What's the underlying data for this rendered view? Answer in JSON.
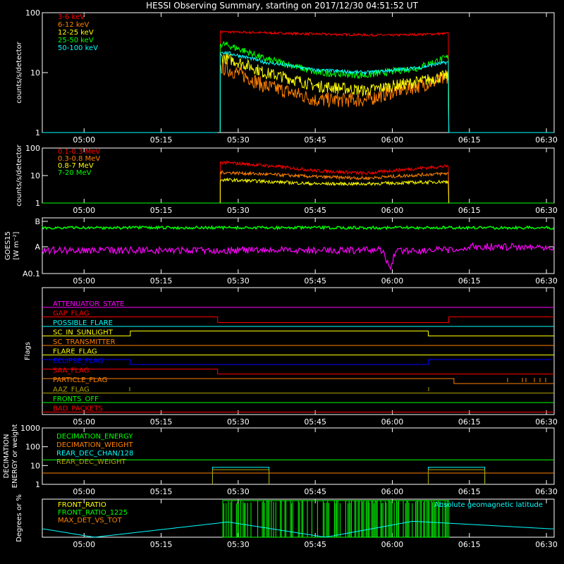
{
  "title": "HESSI Observing Summary, starting on 2017/12/30 04:51:52 UT",
  "time_ticks": [
    "05:00",
    "05:15",
    "05:30",
    "05:45",
    "06:00",
    "06:15",
    "06:30"
  ],
  "colors": {
    "fg": "#ffffff",
    "red": "#ff0000",
    "orange": "#ff8000",
    "yellow": "#ffff00",
    "green": "#00ff00",
    "cyan": "#00ffff",
    "magenta": "#ff00ff",
    "blue": "#0000ff",
    "olive": "#b0a000"
  },
  "chart_data": [
    {
      "type": "line",
      "panel": "counts",
      "ylabel": "counts/s/detector",
      "yscale": "log",
      "ylim": [
        1,
        100
      ],
      "ytick_labels": [
        "1",
        "10",
        "100"
      ],
      "time_range": [
        "04:51:52",
        "06:31:30"
      ],
      "observation_window": [
        "05:26",
        "06:11"
      ],
      "series": [
        {
          "name": "3-6 keV",
          "color": "#ff0000",
          "x": [
            "05:27",
            "05:45",
            "06:00",
            "06:11"
          ],
          "y": [
            48,
            44,
            42,
            45
          ]
        },
        {
          "name": "6-12 keV",
          "color": "#ff8000",
          "x": [
            "05:27",
            "05:35",
            "05:45",
            "05:55",
            "06:05",
            "06:11"
          ],
          "y": [
            12,
            6,
            3.5,
            3.5,
            6,
            8
          ]
        },
        {
          "name": "12-25 keV",
          "color": "#ffff00",
          "x": [
            "05:27",
            "05:35",
            "05:45",
            "05:55",
            "06:05",
            "06:11"
          ],
          "y": [
            18,
            10,
            6,
            5,
            7,
            9
          ]
        },
        {
          "name": "25-50 keV",
          "color": "#00ff00",
          "x": [
            "05:27",
            "05:35",
            "05:45",
            "05:55",
            "06:05",
            "06:11"
          ],
          "y": [
            30,
            17,
            10,
            9,
            12,
            18
          ]
        },
        {
          "name": "50-100 keV",
          "color": "#00ffff",
          "x": [
            "05:27",
            "05:35",
            "05:45",
            "05:55",
            "06:05",
            "06:11"
          ],
          "y": [
            22,
            15,
            11,
            10,
            12,
            15
          ]
        }
      ]
    },
    {
      "type": "line",
      "panel": "counts_high",
      "ylabel": "counts/s/detector",
      "yscale": "log",
      "ylim": [
        1,
        100
      ],
      "ytick_labels": [
        "1",
        "10",
        "100"
      ],
      "series": [
        {
          "name": "0.1-0.3 MeV",
          "color": "#ff0000",
          "x": [
            "05:27",
            "05:45",
            "05:55",
            "06:11"
          ],
          "y": [
            30,
            15,
            12,
            22
          ]
        },
        {
          "name": "0.3-0.8 MeV",
          "color": "#ff8000",
          "x": [
            "05:27",
            "05:45",
            "05:55",
            "06:11"
          ],
          "y": [
            13,
            9,
            8,
            12
          ]
        },
        {
          "name": "0.8-7 MeV",
          "color": "#ffff00",
          "x": [
            "05:27",
            "05:45",
            "05:55",
            "06:11"
          ],
          "y": [
            7,
            5,
            5,
            6
          ]
        },
        {
          "name": "7-20 MeV",
          "color": "#00ff00",
          "x": [],
          "y": []
        }
      ]
    },
    {
      "type": "line",
      "panel": "goes",
      "ylabel": "GOES15",
      "ylabel2": "[W m⁻²]",
      "yscale": "log",
      "ytick_labels": [
        "A0.1",
        "A",
        "B"
      ],
      "series": [
        {
          "color": "#00ff00",
          "x": [
            "04:52",
            "06:31"
          ],
          "y": [
            "B-",
            "B-"
          ]
        },
        {
          "color": "#ff00ff",
          "x": [
            "04:52",
            "05:30",
            "05:55",
            "06:00",
            "06:15",
            "06:31"
          ],
          "y": [
            "A",
            "A-",
            "A-",
            "A0.1",
            "A",
            "A"
          ]
        }
      ]
    },
    {
      "type": "table",
      "panel": "flags",
      "ylabel": "Flags",
      "flags": [
        {
          "name": "ATTENUATOR_STATE",
          "color": "#ff00ff"
        },
        {
          "name": "GAP_FLAG",
          "color": "#ff0000"
        },
        {
          "name": "POSSIBLE_FLARE",
          "color": "#00ffff"
        },
        {
          "name": "SC_IN_SUNLIGHT",
          "color": "#ffff00",
          "on": [
            [
              "05:09",
              "06:07"
            ]
          ]
        },
        {
          "name": "SC_TRANSMITTER",
          "color": "#ff8000"
        },
        {
          "name": "FLARE_FLAG",
          "color": "#ffff00"
        },
        {
          "name": "ECLIPSE_FLAG",
          "color": "#0000ff",
          "on": [
            [
              "04:52",
              "05:09"
            ],
            [
              "06:07",
              "06:31"
            ]
          ]
        },
        {
          "name": "SAA_FLAG",
          "color": "#ff0000",
          "on": [
            [
              "04:52",
              "05:26"
            ]
          ]
        },
        {
          "name": "PARTICLE_FLAG",
          "color": "#ff8000",
          "on": [
            [
              "04:52",
              "06:12"
            ]
          ]
        },
        {
          "name": "AAZ_FLAG",
          "color": "#b0a000"
        },
        {
          "name": "FRONTS_OFF",
          "color": "#00ff00"
        },
        {
          "name": "BAD_PACKETS",
          "color": "#ff0000"
        }
      ]
    },
    {
      "type": "line",
      "panel": "decimation",
      "ylabel": "DECIMATION",
      "ylabel2": "ENERGY or weight",
      "yscale": "log",
      "ylim": [
        1,
        1000
      ],
      "ytick_labels": [
        "1",
        "10",
        "100",
        "1000"
      ],
      "series": [
        {
          "name": "DECIMATION_ENERGY",
          "color": "#00ff00",
          "x": [
            "04:52",
            "06:31"
          ],
          "y": [
            20,
            20
          ]
        },
        {
          "name": "DECIMATION_WEIGHT",
          "color": "#ff8000",
          "x": [
            "04:52",
            "06:31"
          ],
          "y": [
            4,
            4
          ]
        },
        {
          "name": "REAR_DEC_CHAN/128",
          "color": "#00ffff",
          "x": [
            "05:25",
            "05:36",
            "06:07",
            "06:18"
          ],
          "y": [
            8,
            8,
            8,
            8
          ]
        },
        {
          "name": "REAR_DEC_WEIGHT",
          "color": "#b0a000",
          "x": [
            "05:25",
            "05:36",
            "06:07",
            "06:18"
          ],
          "y": [
            6,
            6,
            6,
            6
          ]
        }
      ]
    },
    {
      "type": "line",
      "panel": "ratio",
      "ylabel": "Degrees or %",
      "ylim": [
        0,
        100
      ],
      "series": [
        {
          "name": "FRONT_RATIO",
          "color": "#ffff00"
        },
        {
          "name": "FRONT_RATIO_1225",
          "color": "#00ff00",
          "x": [
            "05:27",
            "06:11"
          ],
          "y": [
            100,
            100
          ]
        },
        {
          "name": "MAX_DET_VS_TOT",
          "color": "#ff8000"
        },
        {
          "name": "Absolute geomagnetic latitude",
          "color": "#00ffff",
          "x": [
            "04:52",
            "05:02",
            "05:28",
            "05:47",
            "06:04",
            "06:31"
          ],
          "y": [
            22,
            0,
            40,
            0,
            42,
            22
          ]
        }
      ]
    }
  ]
}
